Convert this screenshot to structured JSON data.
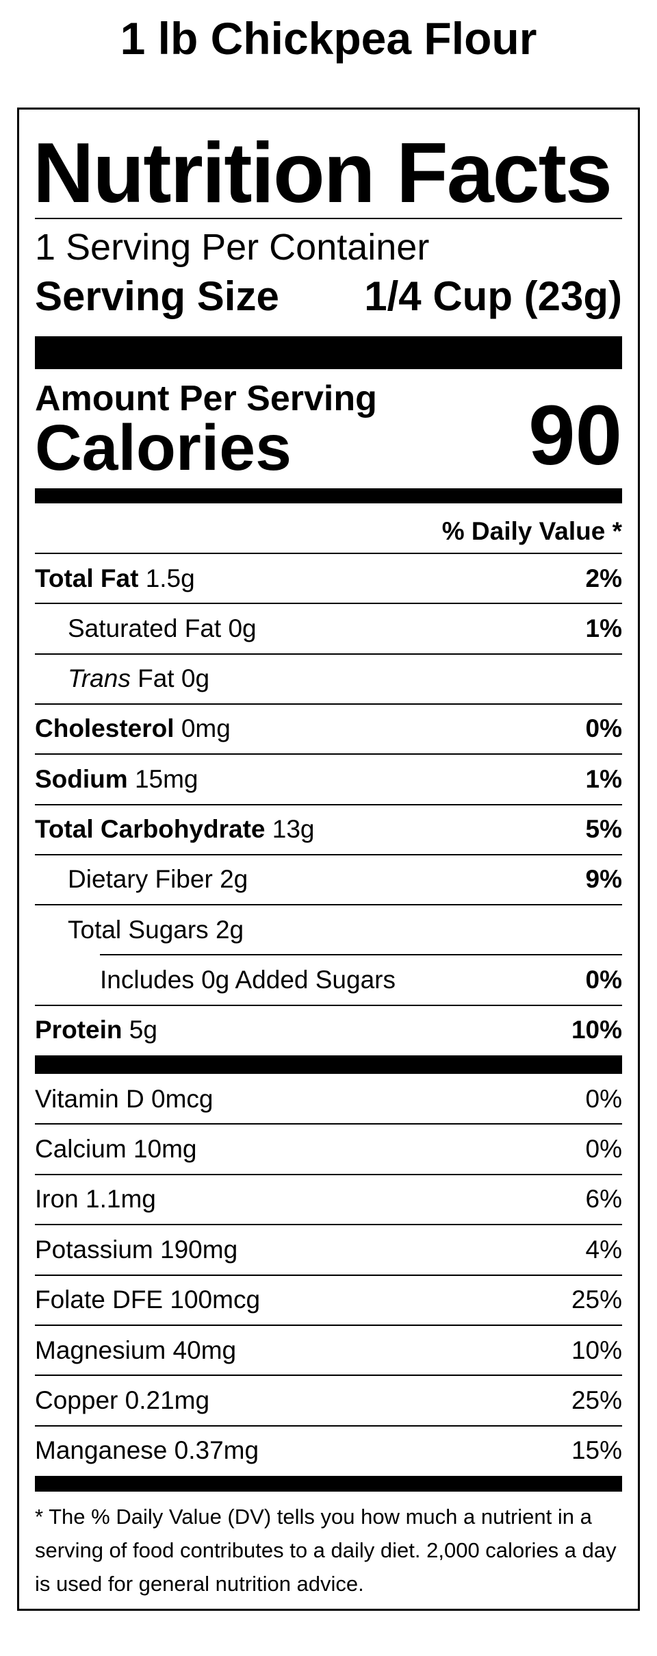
{
  "header": {
    "title": "1 lb Chickpea Flour"
  },
  "label": {
    "heading": "Nutrition Facts",
    "servings": "1 Serving Per Container",
    "serving_size_label": "Serving Size",
    "serving_size_value": "1/4 Cup (23g)",
    "amount_label": "Amount Per Serving",
    "calories_label": "Calories",
    "calories_value": "90",
    "dv_header": "% Daily Value *",
    "nutrients": [
      {
        "name": "Total Fat",
        "amount": "1.5g",
        "dv": "2%"
      },
      {
        "name": "Saturated Fat",
        "amount": "0g",
        "dv": "1%"
      },
      {
        "name_prefix": "Trans",
        "name": "Fat",
        "amount": "0g"
      },
      {
        "name": "Cholesterol",
        "amount": "0mg",
        "dv": "0%"
      },
      {
        "name": "Sodium",
        "amount": "15mg",
        "dv": "1%"
      },
      {
        "name": "Total Carbohydrate",
        "amount": "13g",
        "dv": "5%"
      },
      {
        "name": "Dietary Fiber",
        "amount": "2g",
        "dv": "9%"
      },
      {
        "name": "Total Sugars",
        "amount": "2g"
      },
      {
        "name": "Includes 0g Added Sugars",
        "dv": "0%"
      },
      {
        "name": "Protein",
        "amount": "5g",
        "dv": "10%"
      }
    ],
    "vitamins": [
      {
        "name": "Vitamin D",
        "amount": "0mcg",
        "dv": "0%"
      },
      {
        "name": "Calcium",
        "amount": "10mg",
        "dv": "0%"
      },
      {
        "name": "Iron",
        "amount": "1.1mg",
        "dv": "6%"
      },
      {
        "name": "Potassium",
        "amount": "190mg",
        "dv": "4%"
      },
      {
        "name": "Folate DFE",
        "amount": "100mcg",
        "dv": "25%"
      },
      {
        "name": "Magnesium",
        "amount": "40mg",
        "dv": "10%"
      },
      {
        "name": "Copper",
        "amount": "0.21mg",
        "dv": "25%"
      },
      {
        "name": "Manganese",
        "amount": "0.37mg",
        "dv": "15%"
      }
    ],
    "footnote": "* The % Daily Value (DV) tells you how much a nutrient in a serving of food contributes to a daily diet. 2,000 calories a day is used for general nutrition advice."
  }
}
